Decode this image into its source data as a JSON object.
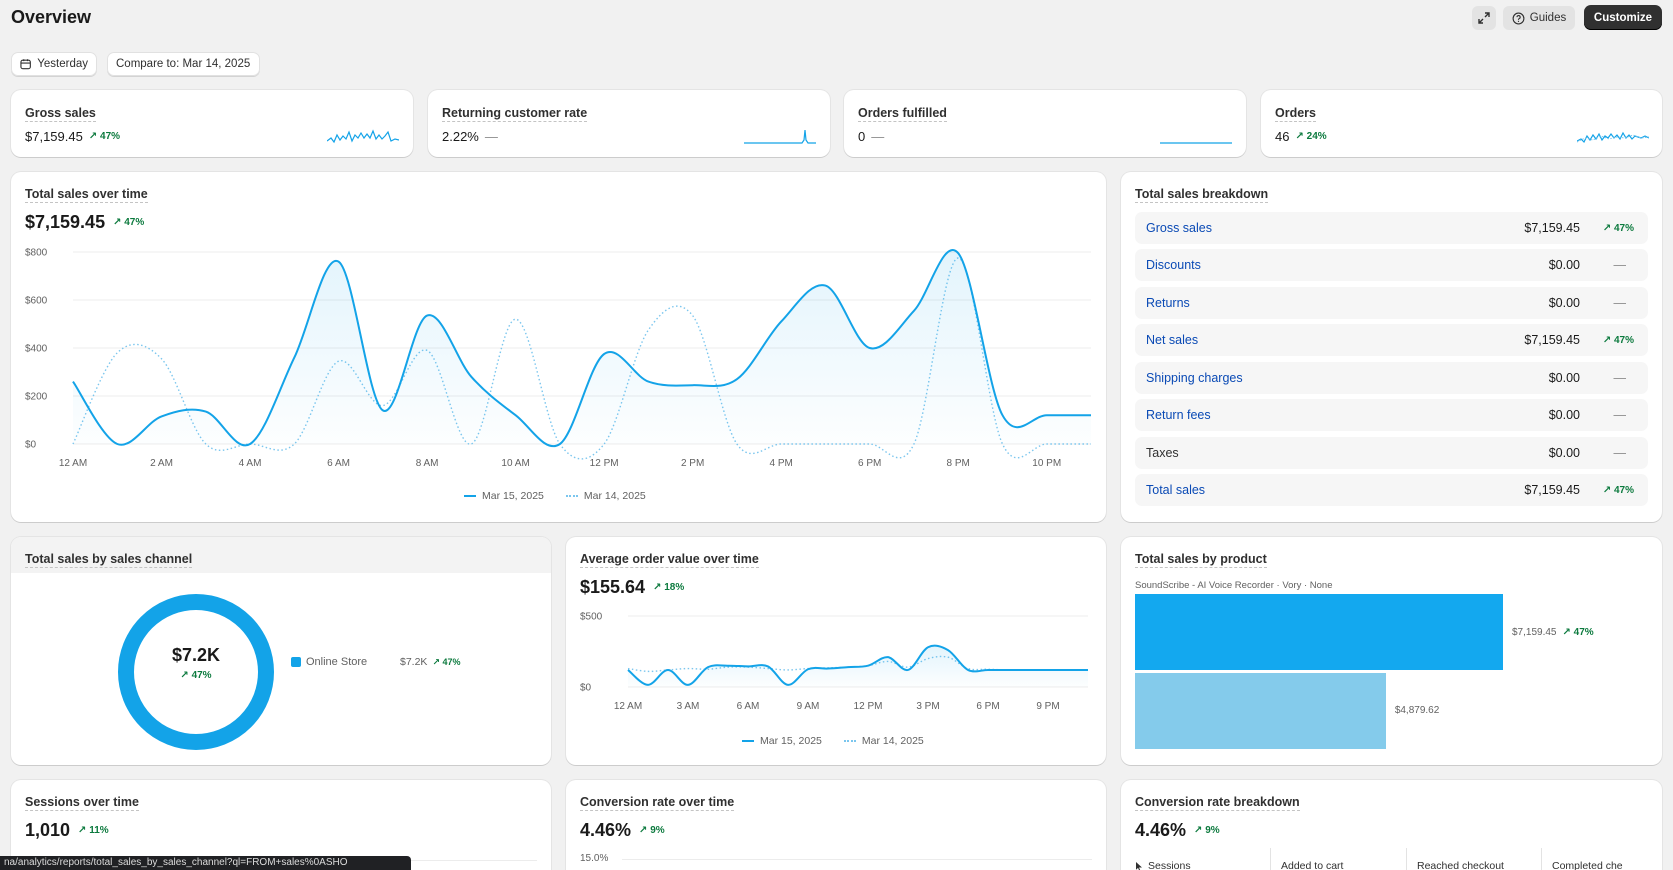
{
  "header": {
    "title": "Overview",
    "guides_label": "Guides",
    "customize_label": "Customize"
  },
  "filters": {
    "date_label": "Yesterday",
    "compare_label": "Compare to: Mar 14, 2025"
  },
  "kpis": [
    {
      "title": "Gross sales",
      "value": "$7,159.45",
      "change": "↗ 47%"
    },
    {
      "title": "Returning customer rate",
      "value": "2.22%",
      "change": "—"
    },
    {
      "title": "Orders fulfilled",
      "value": "0",
      "change": "—"
    },
    {
      "title": "Orders",
      "value": "46",
      "change": "↗ 24%"
    }
  ],
  "total_sales": {
    "title": "Total sales over time",
    "value": "$7,159.45",
    "change": "↗ 47%",
    "legend": [
      "Mar 15, 2025",
      "Mar 14, 2025"
    ]
  },
  "breakdown": {
    "title": "Total sales breakdown",
    "rows": [
      {
        "label": "Gross sales",
        "value": "$7,159.45",
        "change": "↗ 47%"
      },
      {
        "label": "Discounts",
        "value": "$0.00",
        "change": "—"
      },
      {
        "label": "Returns",
        "value": "$0.00",
        "change": "—"
      },
      {
        "label": "Net sales",
        "value": "$7,159.45",
        "change": "↗ 47%"
      },
      {
        "label": "Shipping charges",
        "value": "$0.00",
        "change": "—"
      },
      {
        "label": "Return fees",
        "value": "$0.00",
        "change": "—"
      },
      {
        "label": "Taxes",
        "value": "$0.00",
        "change": "—"
      },
      {
        "label": "Total sales",
        "value": "$7,159.45",
        "change": "↗ 47%"
      }
    ]
  },
  "channel": {
    "title": "Total sales by sales channel",
    "center_value": "$7.2K",
    "center_change": "↗ 47%",
    "legend_label": "Online Store",
    "legend_value": "$7.2K",
    "legend_change": "↗ 47%"
  },
  "aov": {
    "title": "Average order value over time",
    "value": "$155.64",
    "change": "↗ 18%",
    "legend": [
      "Mar 15, 2025",
      "Mar 14, 2025"
    ]
  },
  "product": {
    "title": "Total sales by product",
    "product_name": "SoundScribe - AI Voice Recorder · Vory · None",
    "current_label": "$7,159.45",
    "current_change": "↗ 47%",
    "previous_label": "$4,879.62"
  },
  "sessions": {
    "title": "Sessions over time",
    "value": "1,010",
    "change": "↗ 11%"
  },
  "conversion": {
    "title": "Conversion rate over time",
    "value": "4.46%",
    "change": "↗ 9%",
    "tick": "15.0%"
  },
  "conversion_breakdown": {
    "title": "Conversion rate breakdown",
    "value": "4.46%",
    "change": "↗ 9%",
    "columns": [
      "Sessions",
      "Added to cart",
      "Reached checkout",
      "Completed che"
    ]
  },
  "status_url": "na/analytics/reports/total_sales_by_sales_channel?ql=FROM+sales%0ASHO",
  "chart_data": [
    {
      "type": "line",
      "title": "Total sales over time",
      "x": [
        "12 AM",
        "1 AM",
        "2 AM",
        "3 AM",
        "4 AM",
        "5 AM",
        "6 AM",
        "7 AM",
        "8 AM",
        "9 AM",
        "10 AM",
        "11 AM",
        "12 PM",
        "1 PM",
        "2 PM",
        "3 PM",
        "4 PM",
        "5 PM",
        "6 PM",
        "7 PM",
        "8 PM",
        "9 PM",
        "10 PM",
        "11 PM"
      ],
      "xticks": [
        "12 AM",
        "2 AM",
        "4 AM",
        "6 AM",
        "8 AM",
        "10 AM",
        "12 PM",
        "2 PM",
        "4 PM",
        "6 PM",
        "8 PM",
        "10 PM"
      ],
      "yticks": [
        "$0",
        "$200",
        "$400",
        "$600",
        "$800"
      ],
      "ylim": [
        0,
        800
      ],
      "series": [
        {
          "name": "Mar 15, 2025",
          "style": "solid",
          "values": [
            260,
            0,
            115,
            135,
            0,
            360,
            760,
            140,
            535,
            280,
            120,
            0,
            375,
            260,
            245,
            270,
            510,
            660,
            400,
            555,
            795,
            120,
            120,
            120
          ]
        },
        {
          "name": "Mar 14, 2025",
          "style": "dotted",
          "values": [
            0,
            380,
            355,
            0,
            0,
            0,
            345,
            160,
            390,
            0,
            520,
            0,
            0,
            475,
            535,
            0,
            0,
            0,
            0,
            0,
            775,
            0,
            0,
            0
          ]
        }
      ]
    },
    {
      "type": "line",
      "title": "Average order value over time",
      "x": [
        "12 AM",
        "1 AM",
        "2 AM",
        "3 AM",
        "4 AM",
        "5 AM",
        "6 AM",
        "7 AM",
        "8 AM",
        "9 AM",
        "10 AM",
        "11 AM",
        "12 PM",
        "1 PM",
        "2 PM",
        "3 PM",
        "4 PM",
        "5 PM",
        "6 PM",
        "7 PM",
        "8 PM",
        "9 PM",
        "10 PM",
        "11 PM"
      ],
      "xticks": [
        "12 AM",
        "3 AM",
        "6 AM",
        "9 AM",
        "12 PM",
        "3 PM",
        "6 PM",
        "9 PM"
      ],
      "yticks": [
        "$0",
        "$500"
      ],
      "ylim": [
        0,
        500
      ],
      "series": [
        {
          "name": "Mar 15, 2025",
          "style": "solid",
          "values": [
            120,
            15,
            120,
            15,
            140,
            150,
            145,
            145,
            15,
            125,
            130,
            140,
            150,
            210,
            120,
            280,
            260,
            120,
            120,
            120,
            120,
            120,
            120,
            120
          ]
        },
        {
          "name": "Mar 14, 2025",
          "style": "dotted",
          "values": [
            130,
            110,
            120,
            130,
            125,
            140,
            140,
            130,
            120,
            130,
            135,
            140,
            150,
            180,
            140,
            200,
            210,
            130,
            125,
            120,
            120,
            120,
            120,
            120
          ]
        }
      ]
    },
    {
      "type": "bar",
      "title": "Total sales by product",
      "categories": [
        "SoundScribe - AI Voice Recorder · Vory · None"
      ],
      "series": [
        {
          "name": "Mar 15, 2025",
          "values": [
            7159.45
          ]
        },
        {
          "name": "Mar 14, 2025",
          "values": [
            4879.62
          ]
        }
      ]
    },
    {
      "type": "pie",
      "title": "Total sales by sales channel",
      "categories": [
        "Online Store"
      ],
      "values": [
        7159.45
      ]
    }
  ]
}
